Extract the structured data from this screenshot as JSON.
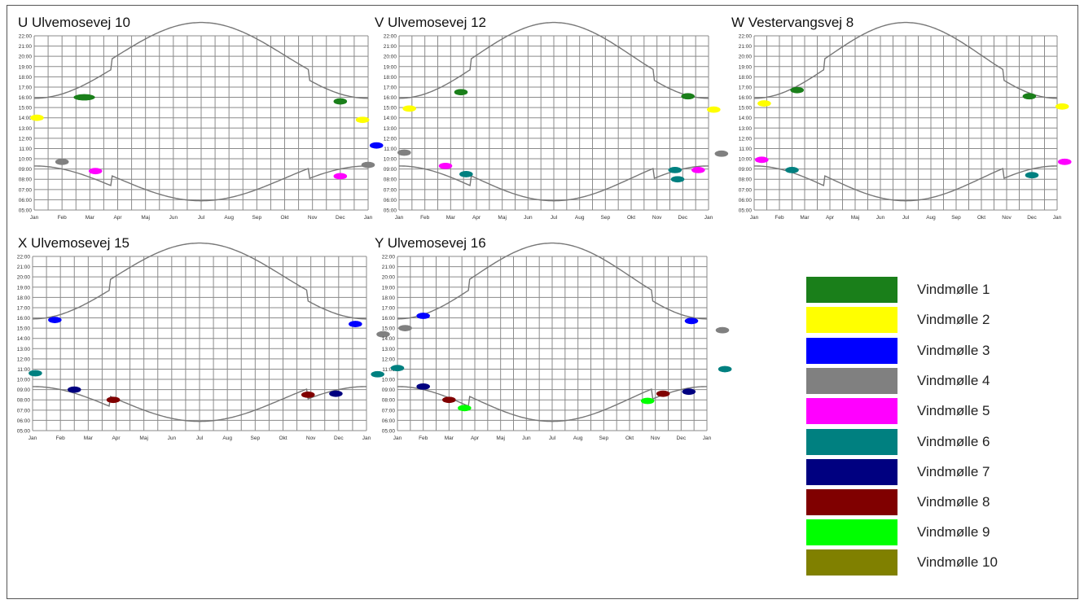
{
  "months": [
    "Jan",
    "Feb",
    "Mar",
    "Apr",
    "Maj",
    "Jun",
    "Jul",
    "Aug",
    "Sep",
    "Okt",
    "Nov",
    "Dec",
    "Jan"
  ],
  "hours": [
    "05:00",
    "06:00",
    "07:00",
    "08:00",
    "09:00",
    "10:00",
    "11:00",
    "12:00",
    "13:00",
    "14:00",
    "15:00",
    "16:00",
    "17:00",
    "18:00",
    "19:00",
    "20:00",
    "21:00",
    "22:00"
  ],
  "legend": [
    {
      "label": "Vindmølle 1",
      "color": "#1a7f1a"
    },
    {
      "label": "Vindmølle 2",
      "color": "#ffff00"
    },
    {
      "label": "Vindmølle 3",
      "color": "#0000ff"
    },
    {
      "label": "Vindmølle 4",
      "color": "#808080"
    },
    {
      "label": "Vindmølle 5",
      "color": "#ff00ff"
    },
    {
      "label": "Vindmølle 6",
      "color": "#008080"
    },
    {
      "label": "Vindmølle 7",
      "color": "#000080"
    },
    {
      "label": "Vindmølle 8",
      "color": "#800000"
    },
    {
      "label": "Vindmølle 9",
      "color": "#00ff00"
    },
    {
      "label": "Vindmølle 10",
      "color": "#808000"
    }
  ],
  "chart_data": [
    {
      "type": "scatter",
      "title": "U Ulvemosevej 10",
      "ylim": [
        5,
        22
      ],
      "series": [
        {
          "name": "Vindmølle 1",
          "points": [
            {
              "x": [
                1.6,
                2.0
              ],
              "y": 16.0
            },
            {
              "x": 11.0,
              "y": 15.6
            }
          ]
        },
        {
          "name": "Vindmølle 2",
          "points": [
            {
              "x": 0.1,
              "y": 14.0
            },
            {
              "x": 11.8,
              "y": 13.8
            }
          ]
        },
        {
          "name": "Vindmølle 3",
          "points": [
            {
              "x": 12.3,
              "y": 11.3
            }
          ]
        },
        {
          "name": "Vindmølle 4",
          "points": [
            {
              "x": 1.0,
              "y": 9.7
            },
            {
              "x": 12.0,
              "y": 9.4
            }
          ]
        },
        {
          "name": "Vindmølle 5",
          "points": [
            {
              "x": 2.2,
              "y": 8.8
            },
            {
              "x": 11.0,
              "y": 8.3
            }
          ]
        }
      ]
    },
    {
      "type": "scatter",
      "title": "V Ulvemosevej 12",
      "ylim": [
        5,
        22
      ],
      "series": [
        {
          "name": "Vindmølle 1",
          "points": [
            {
              "x": 2.4,
              "y": 16.5
            },
            {
              "x": 11.2,
              "y": 16.1
            }
          ]
        },
        {
          "name": "Vindmølle 2",
          "points": [
            {
              "x": 0.4,
              "y": 14.9
            },
            {
              "x": 12.2,
              "y": 14.8
            }
          ]
        },
        {
          "name": "Vindmølle 4",
          "points": [
            {
              "x": 0.2,
              "y": 10.6
            },
            {
              "x": 12.5,
              "y": 10.5
            }
          ]
        },
        {
          "name": "Vindmølle 5",
          "points": [
            {
              "x": 1.8,
              "y": 9.3
            },
            {
              "x": 11.6,
              "y": 8.9
            }
          ]
        },
        {
          "name": "Vindmølle 6",
          "points": [
            {
              "x": 2.6,
              "y": 8.5
            },
            {
              "x": 10.7,
              "y": 8.9
            },
            {
              "x": 10.8,
              "y": 8.0
            }
          ]
        }
      ]
    },
    {
      "type": "scatter",
      "title": "W Vestervangsvej 8",
      "ylim": [
        5,
        22
      ],
      "series": [
        {
          "name": "Vindmølle 1",
          "points": [
            {
              "x": 1.7,
              "y": 16.7
            },
            {
              "x": 10.9,
              "y": 16.1
            }
          ]
        },
        {
          "name": "Vindmølle 2",
          "points": [
            {
              "x": 0.4,
              "y": 15.4
            },
            {
              "x": 12.2,
              "y": 15.1
            }
          ]
        },
        {
          "name": "Vindmølle 5",
          "points": [
            {
              "x": 0.3,
              "y": 9.9
            },
            {
              "x": 12.3,
              "y": 9.7
            }
          ]
        },
        {
          "name": "Vindmølle 6",
          "points": [
            {
              "x": 1.5,
              "y": 8.9
            },
            {
              "x": 11.0,
              "y": 8.4
            }
          ]
        }
      ]
    },
    {
      "type": "scatter",
      "title": "X Ulvemosevej 15",
      "ylim": [
        5,
        22
      ],
      "series": [
        {
          "name": "Vindmølle 3",
          "points": [
            {
              "x": 0.8,
              "y": 15.8
            },
            {
              "x": 11.6,
              "y": 15.4
            }
          ]
        },
        {
          "name": "Vindmølle 4",
          "points": [
            {
              "x": 12.6,
              "y": 14.4
            }
          ]
        },
        {
          "name": "Vindmølle 6",
          "points": [
            {
              "x": 0.1,
              "y": 10.6
            },
            {
              "x": 12.4,
              "y": 10.5
            }
          ]
        },
        {
          "name": "Vindmølle 7",
          "points": [
            {
              "x": 1.5,
              "y": 9.0
            },
            {
              "x": 10.9,
              "y": 8.6
            }
          ]
        },
        {
          "name": "Vindmølle 8",
          "points": [
            {
              "x": 2.9,
              "y": 8.0
            },
            {
              "x": 9.9,
              "y": 8.5
            }
          ]
        }
      ]
    },
    {
      "type": "scatter",
      "title": "Y Ulvemosevej 16",
      "ylim": [
        5,
        22
      ],
      "series": [
        {
          "name": "Vindmølle 3",
          "points": [
            {
              "x": 1.0,
              "y": 16.2
            },
            {
              "x": 11.4,
              "y": 15.7
            }
          ]
        },
        {
          "name": "Vindmølle 4",
          "points": [
            {
              "x": 0.3,
              "y": 15.0
            },
            {
              "x": 12.6,
              "y": 14.8
            }
          ]
        },
        {
          "name": "Vindmølle 6",
          "points": [
            {
              "x": 0.0,
              "y": 11.1
            },
            {
              "x": 12.7,
              "y": 11.0
            }
          ]
        },
        {
          "name": "Vindmølle 7",
          "points": [
            {
              "x": 1.0,
              "y": 9.3
            },
            {
              "x": 11.3,
              "y": 8.8
            }
          ]
        },
        {
          "name": "Vindmølle 8",
          "points": [
            {
              "x": 2.0,
              "y": 8.0
            },
            {
              "x": 10.3,
              "y": 8.6
            }
          ]
        },
        {
          "name": "Vindmølle 9",
          "points": [
            {
              "x": 2.6,
              "y": 7.2
            },
            {
              "x": 9.7,
              "y": 7.9
            }
          ]
        }
      ]
    }
  ]
}
